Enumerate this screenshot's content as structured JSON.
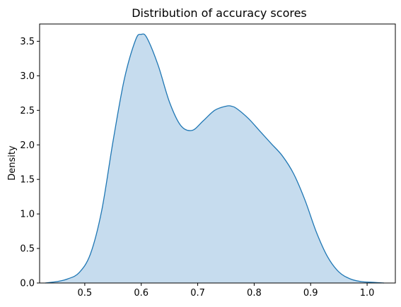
{
  "chart_data": {
    "type": "area",
    "title": "Distribution of accuracy scores",
    "xlabel": "",
    "ylabel": "Density",
    "xlim": [
      0.42,
      1.05
    ],
    "ylim": [
      0,
      3.75
    ],
    "x_ticks": [
      0.5,
      0.6,
      0.7,
      0.8,
      0.9,
      1.0
    ],
    "x_tick_labels": [
      "0.5",
      "0.6",
      "0.7",
      "0.8",
      "0.9",
      "1.0"
    ],
    "y_ticks": [
      0.0,
      0.5,
      1.0,
      1.5,
      2.0,
      2.5,
      3.0,
      3.5
    ],
    "y_tick_labels": [
      "0.0",
      "0.5",
      "1.0",
      "1.5",
      "2.0",
      "2.5",
      "3.0",
      "3.5"
    ],
    "grid": false,
    "colors": {
      "line": "#1f77b4",
      "fill": "#c6dcee"
    },
    "series": [
      {
        "x": [
          0.43,
          0.45,
          0.47,
          0.49,
          0.51,
          0.53,
          0.55,
          0.57,
          0.59,
          0.6,
          0.61,
          0.63,
          0.65,
          0.67,
          0.69,
          0.71,
          0.73,
          0.75,
          0.76,
          0.77,
          0.79,
          0.81,
          0.83,
          0.85,
          0.87,
          0.89,
          0.91,
          0.93,
          0.95,
          0.97,
          0.99,
          1.01,
          1.03
        ],
        "y": [
          0.0,
          0.02,
          0.06,
          0.15,
          0.42,
          1.05,
          2.05,
          2.95,
          3.52,
          3.6,
          3.55,
          3.15,
          2.62,
          2.28,
          2.21,
          2.35,
          2.5,
          2.56,
          2.56,
          2.52,
          2.38,
          2.2,
          2.02,
          1.84,
          1.58,
          1.2,
          0.74,
          0.38,
          0.16,
          0.06,
          0.02,
          0.01,
          0.0
        ]
      }
    ]
  }
}
